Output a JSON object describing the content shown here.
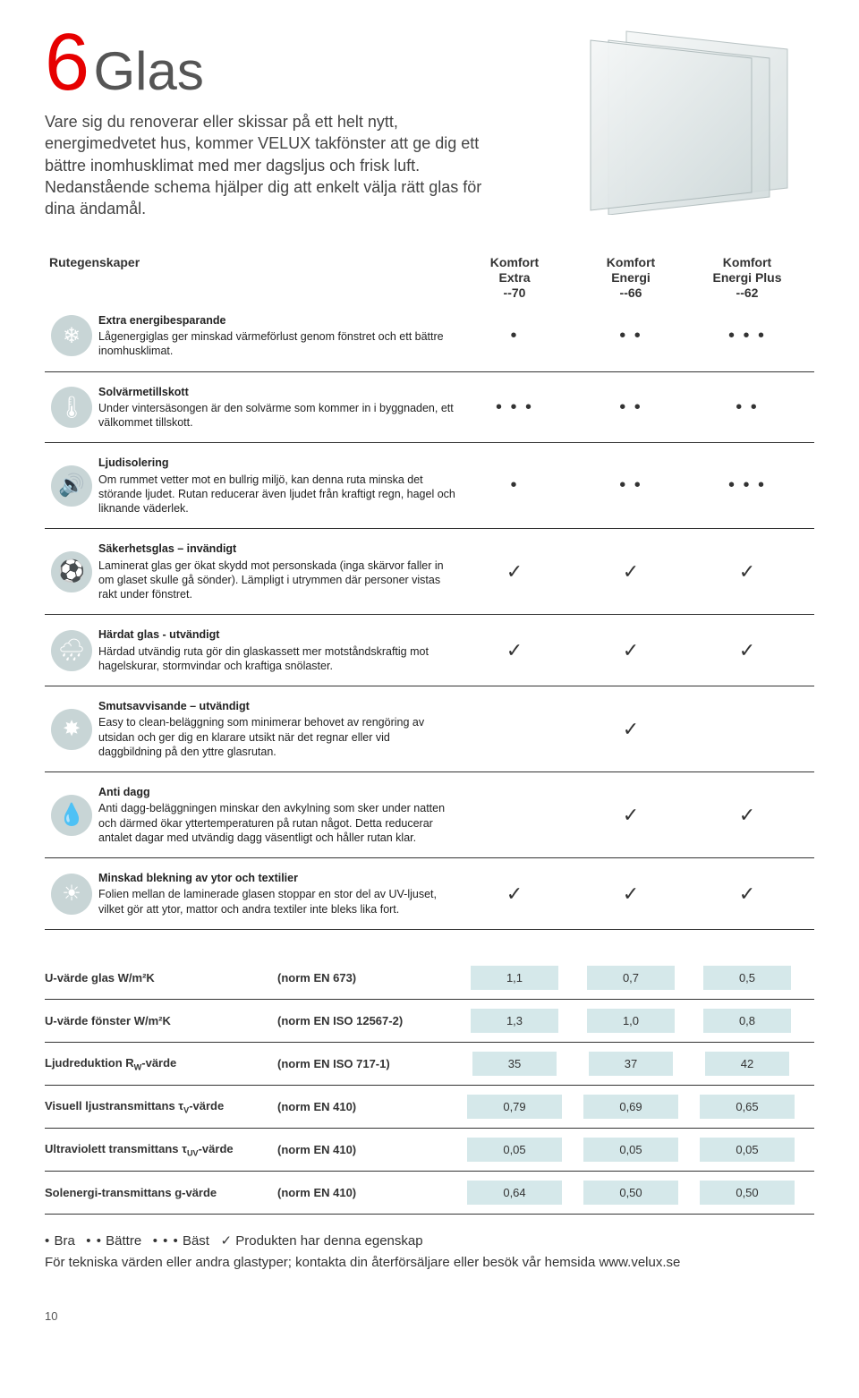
{
  "page_number": "10",
  "title_number": "6",
  "title_word": "Glas",
  "intro": "Vare sig du renoverar eller skissar på ett helt nytt, energimedvetet hus, kommer VELUX takfönster att ge dig ett bättre inomhusklimat med mer dagsljus och frisk luft. Nedanstående schema hjälper dig att enkelt välja rätt glas för dina ändamål.",
  "columns_label": "Rutegenskaper",
  "columns": [
    {
      "line1": "Komfort",
      "line2": "Extra",
      "line3": "--70"
    },
    {
      "line1": "Komfort",
      "line2": "Energi",
      "line3": "--66"
    },
    {
      "line1": "Komfort",
      "line2": "Energi Plus",
      "line3": "--62"
    }
  ],
  "features": [
    {
      "icon": "snowflake-icon",
      "glyph": "❄",
      "title": "Extra energibesparande",
      "desc": "Lågenergiglas ger minskad värmeförlust genom fönstret och ett bättre inomhusklimat.",
      "vals": [
        "•",
        "• •",
        "• • •"
      ],
      "type": "dots"
    },
    {
      "icon": "thermometer-icon",
      "glyph": "🌡",
      "title": "Solvärmetillskott",
      "desc": "Under vintersäsongen är den solvärme som kommer in i byggnaden, ett välkommet tillskott.",
      "vals": [
        "• • •",
        "• •",
        "• •"
      ],
      "type": "dots"
    },
    {
      "icon": "speaker-icon",
      "glyph": "🔊",
      "title": "Ljudisolering",
      "desc": "Om rummet vetter mot en bullrig miljö, kan denna ruta minska det störande ljudet. Rutan reducerar även ljudet från kraftigt regn, hagel och liknande väderlek.",
      "vals": [
        "•",
        "• •",
        "• • •"
      ],
      "type": "dots"
    },
    {
      "icon": "ball-icon",
      "glyph": "⚽",
      "title": "Säkerhetsglas – invändigt",
      "desc": "Laminerat glas ger ökat skydd mot personskada (inga skärvor faller in om glaset skulle gå sönder). Lämpligt i utrymmen där personer vistas rakt under fönstret.",
      "vals": [
        "✓",
        "✓",
        "✓"
      ],
      "type": "check"
    },
    {
      "icon": "hail-icon",
      "glyph": "🌧",
      "title": "Härdat glas - utvändigt",
      "desc": "Härdad utvändig ruta gör din glaskassett mer motståndskraftig mot hagelskurar, stormvindar och kraftiga snölaster.",
      "vals": [
        "✓",
        "✓",
        "✓"
      ],
      "type": "check"
    },
    {
      "icon": "splat-icon",
      "glyph": "✸",
      "title": "Smutsavvisande – utvändigt",
      "desc": "Easy to clean-beläggning som minimerar behovet av rengöring av utsidan och ger dig en klarare utsikt när det regnar eller vid daggbildning på den yttre glasrutan.",
      "vals": [
        "",
        "✓",
        ""
      ],
      "type": "check"
    },
    {
      "icon": "drops-icon",
      "glyph": "💧",
      "title": "Anti dagg",
      "desc": "Anti dagg-beläggningen minskar den avkylning som sker under natten och därmed ökar yttertemperaturen på rutan något. Detta reducerar antalet dagar med utvändig dagg väsentligt och håller rutan klar.",
      "vals": [
        "",
        "✓",
        "✓"
      ],
      "type": "check"
    },
    {
      "icon": "sun-icon",
      "glyph": "☀",
      "title": "Minskad blekning av ytor och textilier",
      "desc": "Folien mellan de laminerade glasen stoppar en stor del av UV-ljuset, vilket gör att ytor, mattor och andra textiler inte bleks lika fort.",
      "vals": [
        "✓",
        "✓",
        "✓"
      ],
      "type": "check"
    }
  ],
  "specs": [
    {
      "label": "U-värde glas W/m²K",
      "norm": "(norm EN 673)",
      "vals": [
        "1,1",
        "0,7",
        "0,5"
      ]
    },
    {
      "label": "U-värde fönster W/m²K",
      "norm": "(norm EN ISO 12567-2)",
      "vals": [
        "1,3",
        "1,0",
        "0,8"
      ]
    },
    {
      "label_html": "Ljudreduktion R<sub>W</sub>-värde",
      "norm": "(norm EN ISO 717-1)",
      "vals": [
        "35",
        "37",
        "42"
      ]
    },
    {
      "label_html": "Visuell ljustransmittans τ<sub>V</sub>-värde",
      "norm": "(norm EN 410)",
      "vals": [
        "0,79",
        "0,69",
        "0,65"
      ]
    },
    {
      "label_html": "Ultraviolett transmittans τ<sub>UV</sub>-värde",
      "norm": "(norm EN 410)",
      "vals": [
        "0,05",
        "0,05",
        "0,05"
      ]
    },
    {
      "label": "Solenergi-transmittans g-värde",
      "norm": "(norm EN 410)",
      "vals": [
        "0,64",
        "0,50",
        "0,50"
      ]
    }
  ],
  "legend": {
    "bra": "Bra",
    "battre": "Bättre",
    "bast": "Bäst",
    "check": "Produkten har denna egenskap",
    "footer": "För tekniska värden eller andra glastyper; kontakta din återförsäljare eller besök vår hemsida www.velux.se"
  },
  "colors": {
    "accent": "#e60000",
    "cell_bg": "#d5e8ea",
    "icon_bg": "#c8d5d6"
  }
}
